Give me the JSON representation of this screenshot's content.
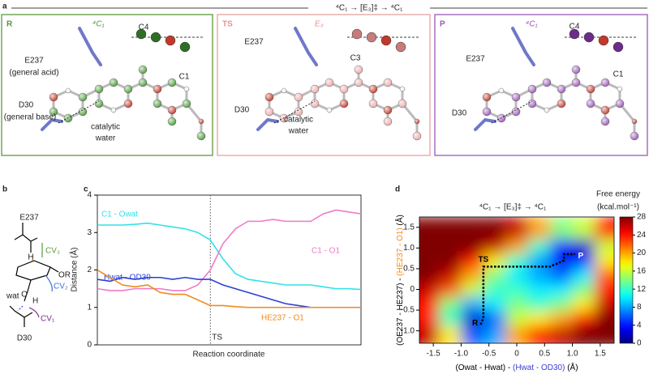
{
  "panel_letters": [
    "a",
    "b",
    "c",
    "d"
  ],
  "panel_a": {
    "title": "⁴C₁ → [E₃]‡ → ⁴C₁",
    "states": [
      {
        "label": "R",
        "conformation": "⁴C₁",
        "texts": [
          "E237",
          "(general acid)",
          "C4",
          "C1",
          "D30",
          "(general base)",
          "catalytic",
          "water"
        ]
      },
      {
        "label": "TS",
        "conformation": "E₃",
        "texts": [
          "E237",
          "C3",
          "D30",
          "catalytic",
          "water"
        ]
      },
      {
        "label": "P",
        "conformation": "⁴C₁",
        "texts": [
          "E237",
          "C4",
          "C1",
          "D30"
        ]
      }
    ]
  },
  "panel_b": {
    "texts": [
      "E237",
      "OR",
      "CV₃",
      "CV₂",
      "CV₁",
      "H",
      "O",
      "wat",
      "H",
      "D30"
    ]
  },
  "chart_data": [
    {
      "type": "line",
      "ylabel": "Distance (Å)",
      "xlabel": "Reaction coordinate",
      "ylim": [
        0,
        4
      ],
      "yticks": [
        0,
        1,
        2,
        3,
        4
      ],
      "annotation": {
        "text": "TS",
        "index": 9
      },
      "series": [
        {
          "name": "C1 - Owat",
          "color": "#2fe2ea",
          "values": [
            3.2,
            3.2,
            3.2,
            3.22,
            3.25,
            3.2,
            3.15,
            3.1,
            3.0,
            2.8,
            2.3,
            1.9,
            1.75,
            1.7,
            1.65,
            1.6,
            1.6,
            1.6,
            1.55,
            1.5,
            1.5,
            1.48
          ]
        },
        {
          "name": "C1 - O1",
          "color": "#f07ac8",
          "values": [
            1.5,
            1.45,
            1.45,
            1.5,
            1.5,
            1.5,
            1.45,
            1.45,
            1.6,
            2.0,
            2.7,
            3.1,
            3.3,
            3.3,
            3.35,
            3.3,
            3.3,
            3.3,
            3.5,
            3.6,
            3.55,
            3.5
          ]
        },
        {
          "name": "Hwat - OD30",
          "color": "#2a3fd6",
          "values": [
            1.75,
            1.7,
            1.8,
            1.75,
            1.8,
            1.8,
            1.75,
            1.8,
            1.75,
            1.75,
            1.6,
            1.5,
            1.4,
            1.3,
            1.2,
            1.1,
            1.05,
            1.0,
            1.0,
            1.0,
            1.0,
            1.0
          ]
        },
        {
          "name": "HE237 - O1",
          "color": "#f08a1a",
          "values": [
            2.0,
            1.8,
            1.6,
            1.55,
            1.6,
            1.4,
            1.35,
            1.35,
            1.2,
            1.05,
            1.05,
            1.02,
            1.0,
            1.0,
            1.0,
            1.0,
            1.0,
            1.0,
            1.0,
            1.0,
            1.0,
            1.0
          ]
        }
      ]
    },
    {
      "type": "heatmap",
      "title": "⁴C₁ → [E₃]‡ → ⁴C₁",
      "colormap": "jet",
      "xlabel": [
        {
          "text": "(Owat - Hwat) - ",
          "color": "#000000"
        },
        {
          "text": "(Hwat - OD30)",
          "color": "#3b3bd6"
        },
        {
          "text": " (Å)",
          "color": "#000000"
        }
      ],
      "ylabel": [
        {
          "text": "(OE237 - HE237) - ",
          "color": "#000000"
        },
        {
          "text": "(HE237 - O1)",
          "color": "#f08a1a"
        },
        {
          "text": " (Å)",
          "color": "#000000"
        }
      ],
      "xlim": [
        -1.75,
        1.75
      ],
      "ylim": [
        -1.3,
        1.75
      ],
      "xticks": [
        -1.5,
        {
          "value": -1.0,
          "label": "-1.0"
        },
        -0.5,
        0,
        0.5,
        {
          "value": 1.0,
          "label": "1.0"
        },
        1.5
      ],
      "yticks": [
        {
          "value": -1.0,
          "label": "-1.0"
        },
        -0.5,
        0,
        0.5,
        {
          "value": 1.0,
          "label": "1.0"
        },
        1.5
      ],
      "x": [
        -1.6,
        -1.2,
        -0.8,
        -0.4,
        0,
        0.4,
        0.8,
        1.2,
        1.6
      ],
      "y": [
        -1.05,
        -0.7,
        -0.35,
        0,
        0.35,
        0.7,
        1.05,
        1.4
      ],
      "z": [
        [
          26,
          18,
          6,
          8,
          20,
          24,
          26,
          28,
          28
        ],
        [
          24,
          12,
          2,
          6,
          16,
          18,
          20,
          24,
          28
        ],
        [
          24,
          14,
          8,
          10,
          14,
          12,
          14,
          18,
          26
        ],
        [
          26,
          22,
          16,
          12,
          12,
          10,
          10,
          14,
          24
        ],
        [
          28,
          26,
          20,
          14,
          10,
          8,
          6,
          10,
          22
        ],
        [
          28,
          28,
          24,
          18,
          12,
          8,
          4,
          4,
          18
        ],
        [
          28,
          28,
          28,
          26,
          20,
          12,
          4,
          2,
          16
        ],
        [
          28,
          28,
          28,
          28,
          26,
          20,
          14,
          16,
          24
        ]
      ],
      "colorbar_title": [
        "Free energy",
        "(kcal.mol⁻¹)"
      ],
      "zlim": [
        0,
        28
      ],
      "zticks": [
        0,
        4,
        8,
        12,
        16,
        20,
        24,
        28
      ],
      "path": {
        "x": [
          -0.65,
          -0.6,
          -0.6,
          -0.6,
          -0.6,
          -0.3,
          0.2,
          0.6,
          0.85,
          0.85,
          1.05
        ],
        "y": [
          -0.85,
          -0.7,
          -0.4,
          0.1,
          0.55,
          0.55,
          0.55,
          0.55,
          0.7,
          0.85,
          0.85
        ]
      },
      "points": [
        {
          "text": "R",
          "x": -0.75,
          "y": -0.82
        },
        {
          "text": "TS",
          "x": -0.6,
          "y": 0.72
        },
        {
          "text": "P",
          "x": 1.15,
          "y": 0.8
        }
      ]
    }
  ]
}
